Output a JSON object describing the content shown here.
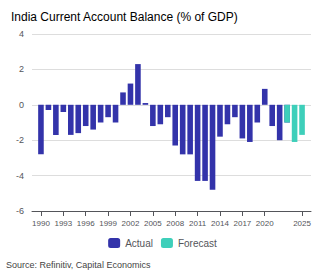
{
  "chart_data": {
    "type": "bar",
    "title": "India Current Account Balance (% of GDP)",
    "annotations": [
      "Source: Refinitiv, Capital Economics"
    ],
    "series": [
      {
        "name": "Actual",
        "color": "#3333aa",
        "x": [
          1990,
          1991,
          1992,
          1993,
          1994,
          1995,
          1996,
          1997,
          1998,
          1999,
          2000,
          2001,
          2002,
          2003,
          2004,
          2005,
          2006,
          2007,
          2008,
          2009,
          2010,
          2011,
          2012,
          2013,
          2014,
          2015,
          2016,
          2017,
          2018,
          2019,
          2020,
          2021,
          2022,
          2023
        ],
        "values": [
          -2.8,
          -0.3,
          -1.7,
          -0.4,
          -1.7,
          -1.6,
          -1.2,
          -1.4,
          -1.0,
          -0.7,
          -1.0,
          0.7,
          1.2,
          2.3,
          0.1,
          -1.2,
          -1.1,
          -0.7,
          -2.3,
          -2.8,
          -2.8,
          -4.3,
          -4.3,
          -4.8,
          -1.8,
          -1.1,
          -0.7,
          -1.9,
          -2.1,
          -1.0,
          0.9,
          -1.2,
          -2.0,
          -1.0
        ]
      },
      {
        "name": "Forecast",
        "color": "#3ecfba",
        "x": [
          2023,
          2024,
          2025
        ],
        "values": [
          -1.0,
          -2.1,
          -1.7
        ]
      }
    ],
    "xlim": [
      1988.8,
      2026.2
    ],
    "xticks": [
      1990,
      1993,
      1996,
      1999,
      2002,
      2005,
      2008,
      2011,
      2014,
      2017,
      2020,
      2025
    ],
    "ylim": [
      -6,
      4
    ],
    "yticks": [
      -6,
      -4,
      -2,
      0,
      2,
      4
    ],
    "grid": true,
    "legend": "bottom"
  }
}
